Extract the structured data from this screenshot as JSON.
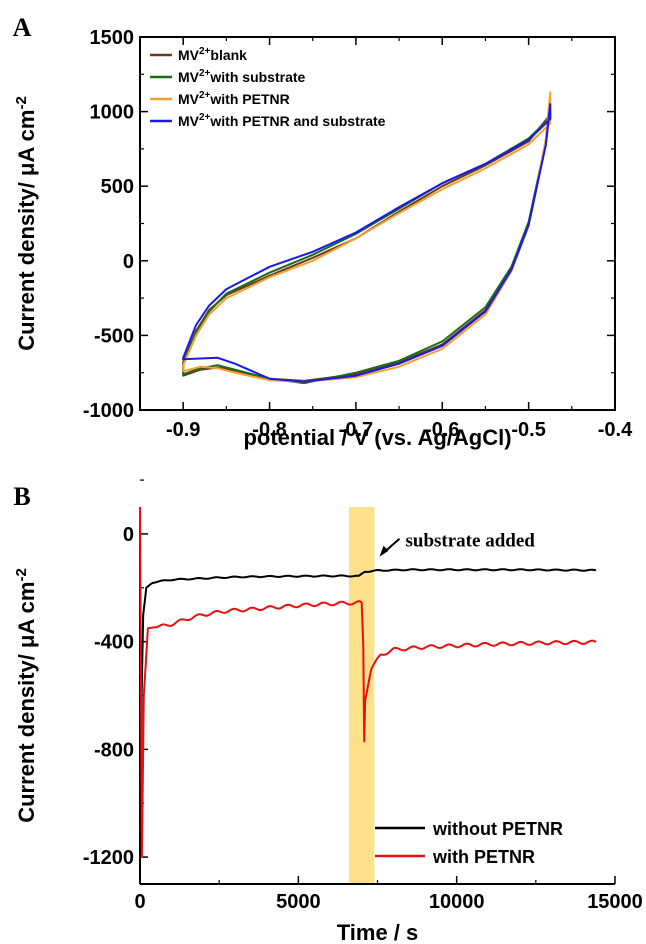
{
  "chart_data": [
    {
      "type": "line",
      "panel_label": "A",
      "xlabel": "potential / V (vs. Ag/AgCl)",
      "ylabel": "Current density/ μA cm⁻²",
      "xlim": [
        -0.95,
        -0.4
      ],
      "ylim": [
        -1000,
        1500
      ],
      "x_ticks": [
        "-0.9",
        "-0.8",
        "-0.7",
        "-0.6",
        "-0.5",
        "-0.4"
      ],
      "y_ticks": [
        "-1000",
        "-500",
        "0",
        "500",
        "1000",
        "1500"
      ],
      "legend_position": "top-left",
      "series": [
        {
          "name_base": "MV",
          "name_sup": "2+",
          "name_rest": "blank",
          "color": "#6b3a1a",
          "upper": [
            [
              -0.9,
              -680
            ],
            [
              -0.885,
              -470
            ],
            [
              -0.87,
              -330
            ],
            [
              -0.85,
              -230
            ],
            [
              -0.8,
              -100
            ],
            [
              -0.75,
              20
            ],
            [
              -0.7,
              150
            ],
            [
              -0.65,
              330
            ],
            [
              -0.6,
              500
            ],
            [
              -0.55,
              640
            ],
            [
              -0.5,
              800
            ],
            [
              -0.475,
              980
            ]
          ],
          "lower": [
            [
              -0.9,
              -770
            ],
            [
              -0.88,
              -730
            ],
            [
              -0.86,
              -715
            ],
            [
              -0.84,
              -735
            ],
            [
              -0.8,
              -790
            ],
            [
              -0.76,
              -805
            ],
            [
              -0.7,
              -760
            ],
            [
              -0.65,
              -680
            ],
            [
              -0.6,
              -560
            ],
            [
              -0.55,
              -330
            ],
            [
              -0.52,
              -50
            ],
            [
              -0.5,
              250
            ],
            [
              -0.49,
              520
            ],
            [
              -0.48,
              780
            ],
            [
              -0.475,
              1050
            ]
          ]
        },
        {
          "name_base": "MV",
          "name_sup": "2+",
          "name_rest": "with substrate",
          "color": "#1a6b1a",
          "upper": [
            [
              -0.9,
              -690
            ],
            [
              -0.885,
              -480
            ],
            [
              -0.87,
              -340
            ],
            [
              -0.85,
              -220
            ],
            [
              -0.8,
              -80
            ],
            [
              -0.75,
              40
            ],
            [
              -0.7,
              180
            ],
            [
              -0.65,
              350
            ],
            [
              -0.6,
              520
            ],
            [
              -0.55,
              650
            ],
            [
              -0.5,
              820
            ],
            [
              -0.475,
              960
            ]
          ],
          "lower": [
            [
              -0.9,
              -760
            ],
            [
              -0.88,
              -720
            ],
            [
              -0.86,
              -700
            ],
            [
              -0.84,
              -730
            ],
            [
              -0.8,
              -790
            ],
            [
              -0.76,
              -820
            ],
            [
              -0.7,
              -750
            ],
            [
              -0.65,
              -670
            ],
            [
              -0.6,
              -540
            ],
            [
              -0.55,
              -310
            ],
            [
              -0.52,
              -40
            ],
            [
              -0.5,
              260
            ],
            [
              -0.49,
              530
            ],
            [
              -0.48,
              800
            ],
            [
              -0.475,
              1020
            ]
          ]
        },
        {
          "name_base": "MV",
          "name_sup": "2+",
          "name_rest": "with PETNR",
          "color": "#f5a030",
          "upper": [
            [
              -0.9,
              -700
            ],
            [
              -0.885,
              -500
            ],
            [
              -0.87,
              -360
            ],
            [
              -0.85,
              -250
            ],
            [
              -0.8,
              -110
            ],
            [
              -0.75,
              0
            ],
            [
              -0.7,
              150
            ],
            [
              -0.65,
              320
            ],
            [
              -0.6,
              480
            ],
            [
              -0.55,
              620
            ],
            [
              -0.5,
              780
            ],
            [
              -0.475,
              920
            ]
          ],
          "lower": [
            [
              -0.9,
              -740
            ],
            [
              -0.88,
              -710
            ],
            [
              -0.86,
              -720
            ],
            [
              -0.84,
              -750
            ],
            [
              -0.8,
              -800
            ],
            [
              -0.76,
              -810
            ],
            [
              -0.7,
              -780
            ],
            [
              -0.65,
              -710
            ],
            [
              -0.6,
              -590
            ],
            [
              -0.55,
              -360
            ],
            [
              -0.52,
              -70
            ],
            [
              -0.5,
              230
            ],
            [
              -0.49,
              510
            ],
            [
              -0.48,
              820
            ],
            [
              -0.475,
              1130
            ]
          ]
        },
        {
          "name_base": "MV",
          "name_sup": "2+",
          "name_rest": "with PETNR and substrate",
          "color": "#1a1ae6",
          "upper": [
            [
              -0.9,
              -650
            ],
            [
              -0.885,
              -430
            ],
            [
              -0.87,
              -300
            ],
            [
              -0.85,
              -190
            ],
            [
              -0.8,
              -40
            ],
            [
              -0.75,
              60
            ],
            [
              -0.7,
              190
            ],
            [
              -0.65,
              360
            ],
            [
              -0.6,
              520
            ],
            [
              -0.55,
              650
            ],
            [
              -0.5,
              810
            ],
            [
              -0.475,
              950
            ]
          ],
          "lower": [
            [
              -0.9,
              -660
            ],
            [
              -0.88,
              -655
            ],
            [
              -0.86,
              -650
            ],
            [
              -0.84,
              -690
            ],
            [
              -0.8,
              -790
            ],
            [
              -0.76,
              -810
            ],
            [
              -0.7,
              -770
            ],
            [
              -0.65,
              -690
            ],
            [
              -0.6,
              -570
            ],
            [
              -0.55,
              -340
            ],
            [
              -0.52,
              -60
            ],
            [
              -0.5,
              240
            ],
            [
              -0.49,
              510
            ],
            [
              -0.48,
              780
            ],
            [
              -0.475,
              1050
            ]
          ]
        }
      ]
    },
    {
      "type": "line",
      "panel_label": "B",
      "xlabel": "Time / s",
      "ylabel": "Current density/ μA cm⁻²",
      "xlim": [
        0,
        15000
      ],
      "ylim": [
        -1300,
        100
      ],
      "x_ticks": [
        "0",
        "5000",
        "10000",
        "15000"
      ],
      "y_ticks": [
        "-1200",
        "-800",
        "-400",
        "0"
      ],
      "legend_position": "bottom-right",
      "highlight": {
        "x_start": 6600,
        "x_end": 7400,
        "color": "#fce08a"
      },
      "annotation": {
        "text": "substrate added",
        "x": 7500,
        "y": -40
      },
      "series": [
        {
          "name": "without PETNR",
          "color": "#000000",
          "points": [
            [
              0,
              -1200
            ],
            [
              50,
              -600
            ],
            [
              100,
              -300
            ],
            [
              200,
              -200
            ],
            [
              400,
              -180
            ],
            [
              1000,
              -170
            ],
            [
              2000,
              -165
            ],
            [
              3000,
              -160
            ],
            [
              4000,
              -158
            ],
            [
              5000,
              -157
            ],
            [
              6000,
              -156
            ],
            [
              6900,
              -156
            ],
            [
              7100,
              -140
            ],
            [
              7500,
              -136
            ],
            [
              8500,
              -133
            ],
            [
              10000,
              -133
            ],
            [
              12000,
              -133
            ],
            [
              14400,
              -135
            ]
          ]
        },
        {
          "name": "with PETNR",
          "color": "#e81010",
          "points": [
            [
              0,
              100
            ],
            [
              60,
              -1200
            ],
            [
              120,
              -600
            ],
            [
              250,
              -350
            ],
            [
              600,
              -345
            ],
            [
              1000,
              -335
            ],
            [
              1500,
              -315
            ],
            [
              2000,
              -300
            ],
            [
              2800,
              -285
            ],
            [
              3500,
              -280
            ],
            [
              4500,
              -270
            ],
            [
              5500,
              -262
            ],
            [
              6500,
              -257
            ],
            [
              7000,
              -255
            ],
            [
              7050,
              -420
            ],
            [
              7080,
              -770
            ],
            [
              7110,
              -620
            ],
            [
              7300,
              -500
            ],
            [
              7600,
              -450
            ],
            [
              8000,
              -430
            ],
            [
              9000,
              -420
            ],
            [
              10000,
              -415
            ],
            [
              11000,
              -410
            ],
            [
              12000,
              -407
            ],
            [
              13000,
              -404
            ],
            [
              14400,
              -402
            ]
          ]
        }
      ]
    }
  ]
}
